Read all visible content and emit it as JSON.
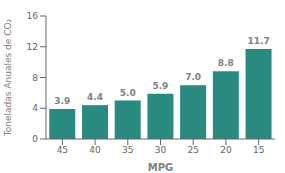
{
  "chart_data": {
    "type": "bar",
    "categories": [
      "45",
      "40",
      "35",
      "30",
      "25",
      "20",
      "15"
    ],
    "values": [
      3.9,
      4.4,
      5.0,
      5.9,
      7.0,
      8.8,
      11.7
    ],
    "value_labels": [
      "3.9",
      "4.4",
      "5.0",
      "5.9",
      "7.0",
      "8.8",
      "11.7"
    ],
    "data_labels": true,
    "color": "#2a8a80",
    "xlabel": "MPG",
    "ylabel": "Toneladas Anuales de CO₂",
    "ylim": [
      0,
      16
    ],
    "yticks": [
      0,
      4,
      8,
      12,
      16
    ],
    "grid": false
  }
}
